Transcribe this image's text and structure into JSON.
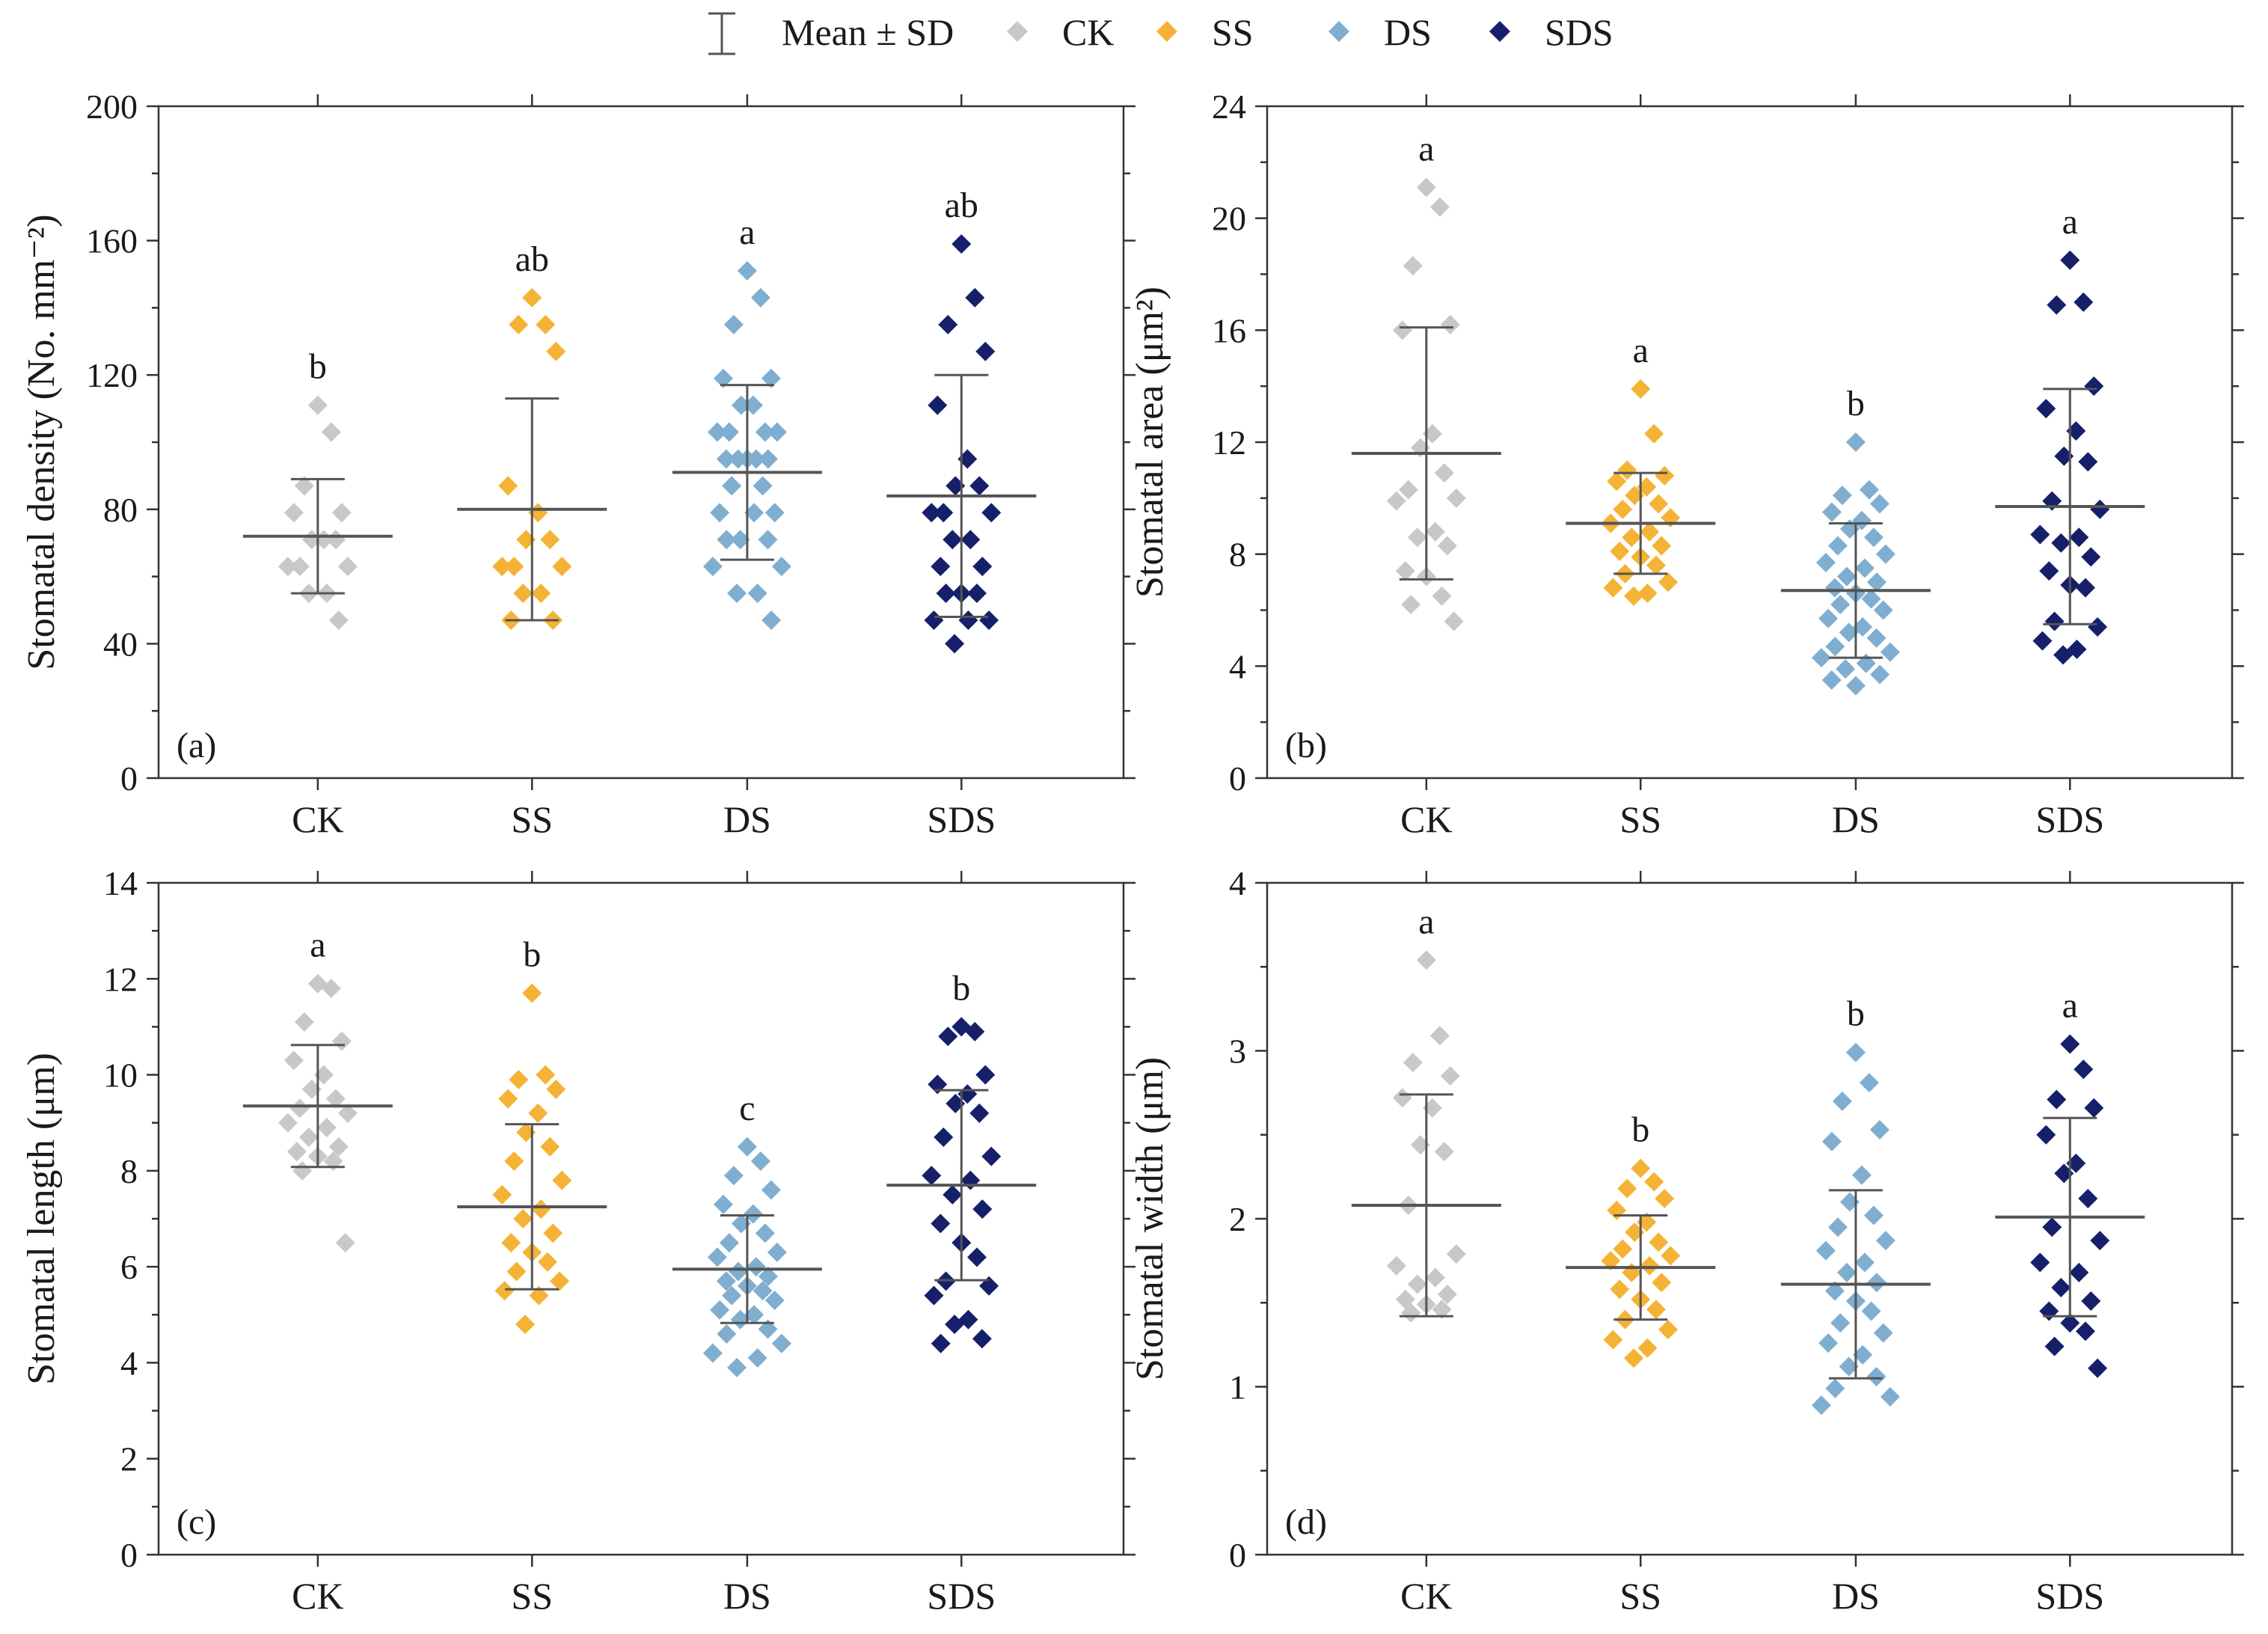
{
  "legend": {
    "items": [
      {
        "label": "Mean ± SD",
        "kind": "errorbar"
      },
      {
        "label": "CK",
        "kind": "marker",
        "color": "#c8c8c8"
      },
      {
        "label": "SS",
        "kind": "marker",
        "color": "#f5b335"
      },
      {
        "label": "DS",
        "kind": "marker",
        "color": "#7faed0"
      },
      {
        "label": "SDS",
        "kind": "marker",
        "color": "#16206a"
      }
    ]
  },
  "colors": {
    "CK": "#c8c8c8",
    "SS": "#f5b335",
    "DS": "#7faed0",
    "SDS": "#16206a",
    "errorbar": "#555555"
  },
  "chart_data": [
    {
      "type": "scatter",
      "panel": "(a)",
      "position": "top-left",
      "ylabel": "Stomatal density (No. mm⁻²)",
      "ylim": [
        0,
        200
      ],
      "yticks": [
        0,
        40,
        80,
        120,
        160,
        200
      ],
      "categories": [
        "CK",
        "SS",
        "DS",
        "SDS"
      ],
      "groups": [
        {
          "name": "CK",
          "mean": 72,
          "sd": 17,
          "letter": "b",
          "points": [
            111,
            103,
            87,
            79,
            79,
            71,
            71,
            71,
            63,
            63,
            63,
            55,
            55,
            47
          ]
        },
        {
          "name": "SS",
          "mean": 80,
          "sd": 33,
          "letter": "ab",
          "points": [
            143,
            135,
            135,
            127,
            87,
            79,
            71,
            71,
            63,
            63,
            63,
            55,
            55,
            47,
            47
          ]
        },
        {
          "name": "DS",
          "mean": 91,
          "sd": 26,
          "letter": "a",
          "points": [
            151,
            143,
            135,
            119,
            119,
            111,
            111,
            103,
            103,
            103,
            103,
            95,
            95,
            95,
            95,
            95,
            87,
            87,
            79,
            79,
            79,
            71,
            71,
            71,
            63,
            63,
            55,
            55,
            47
          ]
        },
        {
          "name": "SDS",
          "mean": 84,
          "sd": 36,
          "letter": "ab",
          "points": [
            159,
            143,
            135,
            127,
            111,
            95,
            87,
            87,
            79,
            79,
            79,
            71,
            71,
            63,
            63,
            55,
            55,
            55,
            47,
            47,
            47,
            40
          ]
        }
      ]
    },
    {
      "type": "scatter",
      "panel": "(b)",
      "position": "top-right",
      "ylabel": "Stomatal area (μm²)",
      "ylim": [
        0,
        24
      ],
      "yticks": [
        0,
        4,
        8,
        12,
        16,
        20,
        24
      ],
      "categories": [
        "CK",
        "SS",
        "DS",
        "SDS"
      ],
      "groups": [
        {
          "name": "CK",
          "mean": 11.6,
          "sd": 4.5,
          "letter": "a",
          "points": [
            21.1,
            20.4,
            18.3,
            16.2,
            16.0,
            12.3,
            11.8,
            10.9,
            10.3,
            10.0,
            9.9,
            8.8,
            8.6,
            8.3,
            7.4,
            7.2,
            6.5,
            6.2,
            5.6
          ]
        },
        {
          "name": "SS",
          "mean": 9.1,
          "sd": 1.8,
          "letter": "a",
          "points": [
            13.9,
            12.3,
            11.0,
            10.8,
            10.6,
            10.4,
            10.1,
            9.8,
            9.6,
            9.3,
            9.1,
            8.8,
            8.6,
            8.3,
            8.1,
            7.9,
            7.6,
            7.3,
            7.0,
            6.8,
            6.6,
            6.5
          ]
        },
        {
          "name": "DS",
          "mean": 6.7,
          "sd": 2.4,
          "letter": "b",
          "points": [
            12.0,
            10.3,
            10.1,
            9.8,
            9.5,
            9.2,
            8.9,
            8.6,
            8.3,
            8.0,
            7.7,
            7.5,
            7.2,
            7.0,
            6.8,
            6.6,
            6.4,
            6.2,
            6.0,
            5.7,
            5.4,
            5.2,
            5.0,
            4.7,
            4.5,
            4.3,
            4.1,
            3.9,
            3.7,
            3.5,
            3.3
          ]
        },
        {
          "name": "SDS",
          "mean": 9.7,
          "sd": 4.2,
          "letter": "a",
          "points": [
            18.5,
            17.0,
            16.9,
            14.0,
            13.2,
            12.4,
            11.5,
            11.3,
            9.9,
            9.6,
            8.7,
            8.6,
            8.4,
            7.9,
            7.4,
            6.9,
            6.8,
            5.6,
            5.4,
            4.9,
            4.6,
            4.4
          ]
        }
      ]
    },
    {
      "type": "scatter",
      "panel": "(c)",
      "position": "bottom-left",
      "ylabel": "Stomatal length (μm)",
      "ylim": [
        0,
        14
      ],
      "yticks": [
        0,
        2,
        4,
        6,
        8,
        10,
        12,
        14
      ],
      "categories": [
        "CK",
        "SS",
        "DS",
        "SDS"
      ],
      "groups": [
        {
          "name": "CK",
          "mean": 9.35,
          "sd": 1.27,
          "letter": "a",
          "points": [
            11.9,
            11.8,
            11.1,
            10.7,
            10.3,
            10.0,
            9.7,
            9.5,
            9.3,
            9.2,
            9.0,
            8.9,
            8.7,
            8.5,
            8.4,
            8.3,
            8.2,
            8.0,
            6.5
          ]
        },
        {
          "name": "SS",
          "mean": 7.25,
          "sd": 1.72,
          "letter": "b",
          "points": [
            11.7,
            10.0,
            9.9,
            9.7,
            9.5,
            9.2,
            8.8,
            8.5,
            8.2,
            7.8,
            7.5,
            7.2,
            7.0,
            6.7,
            6.5,
            6.3,
            6.1,
            5.9,
            5.7,
            5.5,
            5.4,
            4.8
          ]
        },
        {
          "name": "DS",
          "mean": 5.95,
          "sd": 1.12,
          "letter": "c",
          "points": [
            8.5,
            8.2,
            7.9,
            7.6,
            7.3,
            7.1,
            6.9,
            6.7,
            6.5,
            6.3,
            6.2,
            6.0,
            5.9,
            5.8,
            5.7,
            5.6,
            5.5,
            5.4,
            5.3,
            5.1,
            5.0,
            4.9,
            4.7,
            4.6,
            4.4,
            4.2,
            4.1,
            3.9
          ]
        },
        {
          "name": "SDS",
          "mean": 7.7,
          "sd": 1.98,
          "letter": "b",
          "points": [
            11.0,
            10.9,
            10.8,
            10.0,
            9.8,
            9.6,
            9.4,
            9.2,
            8.7,
            8.3,
            7.9,
            7.8,
            7.5,
            7.2,
            6.9,
            6.5,
            6.2,
            5.7,
            5.6,
            5.4,
            4.9,
            4.8,
            4.5,
            4.4
          ]
        }
      ]
    },
    {
      "type": "scatter",
      "panel": "(d)",
      "position": "bottom-right",
      "ylabel": "Stomatal width (μm)",
      "ylim": [
        0,
        4
      ],
      "yticks": [
        0,
        1,
        2,
        3,
        4
      ],
      "categories": [
        "CK",
        "SS",
        "DS",
        "SDS"
      ],
      "groups": [
        {
          "name": "CK",
          "mean": 2.08,
          "sd": 0.66,
          "letter": "a",
          "points": [
            3.54,
            3.09,
            2.93,
            2.85,
            2.72,
            2.66,
            2.44,
            2.4,
            2.08,
            1.79,
            1.72,
            1.65,
            1.61,
            1.55,
            1.52,
            1.49,
            1.46,
            1.44
          ]
        },
        {
          "name": "SS",
          "mean": 1.71,
          "sd": 0.31,
          "letter": "b",
          "points": [
            2.3,
            2.22,
            2.18,
            2.12,
            2.05,
            1.98,
            1.92,
            1.86,
            1.82,
            1.78,
            1.75,
            1.72,
            1.68,
            1.62,
            1.58,
            1.52,
            1.46,
            1.4,
            1.34,
            1.28,
            1.23,
            1.17
          ]
        },
        {
          "name": "DS",
          "mean": 1.61,
          "sd": 0.56,
          "letter": "b",
          "points": [
            2.99,
            2.81,
            2.7,
            2.53,
            2.46,
            2.26,
            2.1,
            2.02,
            1.95,
            1.87,
            1.81,
            1.74,
            1.68,
            1.62,
            1.57,
            1.51,
            1.45,
            1.38,
            1.32,
            1.26,
            1.19,
            1.12,
            1.06,
            0.99,
            0.94,
            0.89
          ]
        },
        {
          "name": "SDS",
          "mean": 2.01,
          "sd": 0.59,
          "letter": "a",
          "points": [
            3.04,
            2.89,
            2.71,
            2.66,
            2.5,
            2.33,
            2.27,
            2.12,
            1.95,
            1.87,
            1.74,
            1.68,
            1.59,
            1.51,
            1.45,
            1.38,
            1.33,
            1.24,
            1.11
          ]
        }
      ]
    }
  ]
}
